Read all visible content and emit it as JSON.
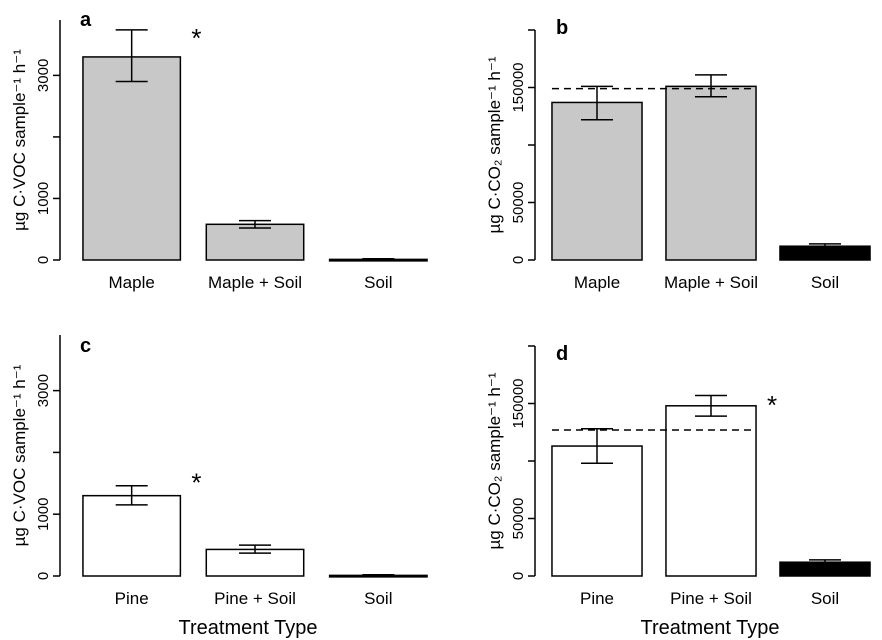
{
  "figure": {
    "shared_xlabel": "Treatment Type"
  },
  "chart_data": [
    {
      "panel": "a",
      "type": "bar",
      "categories": [
        "Maple",
        "Maple + Soil",
        "Soil"
      ],
      "values": [
        3300,
        580,
        10
      ],
      "errors": [
        [
          2900,
          3740
        ],
        [
          520,
          640
        ],
        [
          0,
          20
        ]
      ],
      "colors": [
        "#c8c8c8",
        "#c8c8c8",
        "#c8c8c8"
      ],
      "annotation": "*",
      "annotation_index": 0,
      "ylabel": "µg C·VOC sample⁻¹ h⁻¹",
      "yticks": [
        0,
        1000,
        3000
      ],
      "ylim": [
        0,
        3900
      ],
      "xlabel": ""
    },
    {
      "panel": "b",
      "type": "bar",
      "categories": [
        "Maple",
        "Maple + Soil",
        "Soil"
      ],
      "values": [
        137000,
        151000,
        12000
      ],
      "errors": [
        [
          122000,
          151000
        ],
        [
          142000,
          161000
        ],
        [
          10000,
          14000
        ]
      ],
      "colors": [
        "#c8c8c8",
        "#c8c8c8",
        "#000000"
      ],
      "reference_line": 149000,
      "ylabel": "µg C·CO₂ sample⁻¹ h⁻¹",
      "yticks": [
        0,
        50000,
        150000
      ],
      "ylim": [
        0,
        200000
      ],
      "xlabel": ""
    },
    {
      "panel": "c",
      "type": "bar",
      "categories": [
        "Pine",
        "Pine + Soil",
        "Soil"
      ],
      "values": [
        1300,
        430,
        10
      ],
      "errors": [
        [
          1150,
          1460
        ],
        [
          370,
          500
        ],
        [
          0,
          20
        ]
      ],
      "colors": [
        "#ffffff",
        "#ffffff",
        "#ffffff"
      ],
      "annotation": "*",
      "annotation_index": 0,
      "ylabel": "µg C·VOC sample⁻¹ h⁻¹",
      "yticks": [
        0,
        1000,
        3000
      ],
      "ylim": [
        0,
        3900
      ],
      "xlabel": ""
    },
    {
      "panel": "d",
      "type": "bar",
      "categories": [
        "Pine",
        "Pine + Soil",
        "Soil"
      ],
      "values": [
        113000,
        148000,
        12000
      ],
      "errors": [
        [
          98000,
          128000
        ],
        [
          139000,
          157000
        ],
        [
          10000,
          14000
        ]
      ],
      "colors": [
        "#ffffff",
        "#ffffff",
        "#000000"
      ],
      "reference_line": 127000,
      "annotation": "*",
      "annotation_index": 1,
      "ylabel": "µg C·CO₂ sample⁻¹ h⁻¹",
      "yticks": [
        0,
        50000,
        150000
      ],
      "ylim": [
        0,
        200000
      ],
      "xlabel": ""
    }
  ]
}
